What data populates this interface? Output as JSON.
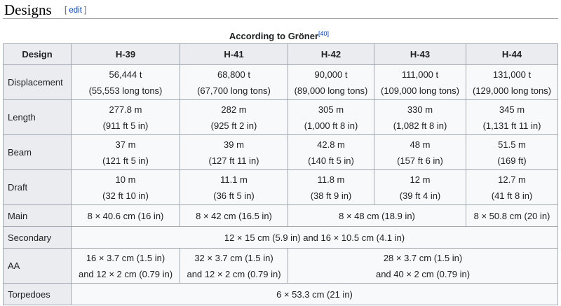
{
  "section": {
    "title": "Designs",
    "bracket_open": "[",
    "edit_label": "edit",
    "bracket_close": "]"
  },
  "caption": {
    "text": "According to Gröner",
    "ref": "[40]"
  },
  "table": {
    "headers": [
      "Design",
      "H-39",
      "H-41",
      "H-42",
      "H-43",
      "H-44"
    ],
    "displacement": {
      "label": "Displacement",
      "h39": {
        "l1": "56,444 t",
        "l2": "(55,553 long tons)"
      },
      "h41": {
        "l1": "68,800 t",
        "l2": "(67,700 long tons)"
      },
      "h42": {
        "l1": "90,000 t",
        "l2": "(89,000 long tons)"
      },
      "h43": {
        "l1": "111,000 t",
        "l2": "(109,000 long tons)"
      },
      "h44": {
        "l1": "131,000 t",
        "l2": "(129,000 long tons)"
      }
    },
    "length": {
      "label": "Length",
      "h39": {
        "l1": "277.8 m",
        "l2": "(911 ft 5 in)"
      },
      "h41": {
        "l1": "282 m",
        "l2": "(925 ft 2 in)"
      },
      "h42": {
        "l1": "305 m",
        "l2": "(1,000 ft 8 in)"
      },
      "h43": {
        "l1": "330 m",
        "l2": "(1,082 ft 8 in)"
      },
      "h44": {
        "l1": "345 m",
        "l2": "(1,131 ft 11 in)"
      }
    },
    "beam": {
      "label": "Beam",
      "h39": {
        "l1": "37 m",
        "l2": "(121 ft 5 in)"
      },
      "h41": {
        "l1": "39 m",
        "l2": "(127 ft 11 in)"
      },
      "h42": {
        "l1": "42.8 m",
        "l2": "(140 ft 5 in)"
      },
      "h43": {
        "l1": "48 m",
        "l2": "(157 ft 6 in)"
      },
      "h44": {
        "l1": "51.5 m",
        "l2": "(169 ft)"
      }
    },
    "draft": {
      "label": "Draft",
      "h39": {
        "l1": "10 m",
        "l2": "(32 ft 10 in)"
      },
      "h41": {
        "l1": "11.1 m",
        "l2": "(36 ft 5 in)"
      },
      "h42": {
        "l1": "11.8 m",
        "l2": "(38 ft 9 in)"
      },
      "h43": {
        "l1": "12 m",
        "l2": "(39 ft 4 in)"
      },
      "h44": {
        "l1": "12.7 m",
        "l2": "(41 ft 8 in)"
      }
    },
    "main": {
      "label": "Main",
      "h39": "8 × 40.6 cm (16 in)",
      "h41": "8 × 42 cm (16.5 in)",
      "h42_h43": "8 × 48 cm (18.9 in)",
      "h44": "8 × 50.8 cm (20 in)"
    },
    "secondary": {
      "label": "Secondary",
      "all": "12 × 15 cm (5.9 in) and 16 × 10.5 cm (4.1 in)"
    },
    "aa": {
      "label": "AA",
      "h39": {
        "l1": "16 × 3.7 cm (1.5 in)",
        "l2": "and 12 × 2 cm (0.79 in)"
      },
      "h41": {
        "l1": "32 × 3.7 cm (1.5 in)",
        "l2": "and 12 × 2 cm (0.79 in)"
      },
      "h42_h44": {
        "l1": "28 × 3.7 cm (1.5 in)",
        "l2": "and 40 × 2 cm (0.79 in)"
      }
    },
    "torpedoes": {
      "label": "Torpedoes",
      "all": "6 × 53.3 cm (21 in)"
    }
  }
}
